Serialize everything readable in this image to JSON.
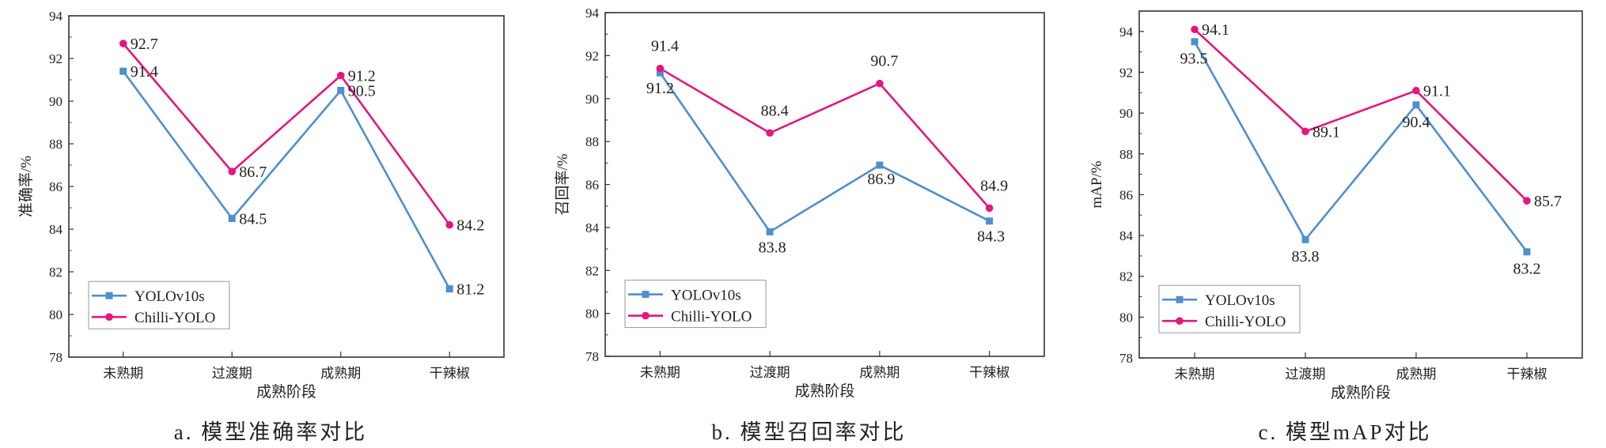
{
  "colors": {
    "YOLOv10s": "#4f8fcc",
    "Chilli-YOLO": "#e3177d",
    "axis": "#333333"
  },
  "chart_data": [
    {
      "type": "line",
      "caption": "a. 模型准确率对比",
      "xlabel": "成熟阶段",
      "ylabel": "准确率/%",
      "categories": [
        "未熟期",
        "过渡期",
        "成熟期",
        "干辣椒"
      ],
      "ylim": [
        78,
        94
      ],
      "yticks": [
        78,
        80,
        82,
        84,
        86,
        88,
        90,
        92,
        94
      ],
      "legend_position": "bottom-left",
      "series": [
        {
          "name": "YOLOv10s",
          "marker": "square",
          "values": [
            91.4,
            84.5,
            90.5,
            81.2
          ],
          "labels": [
            "91.4",
            "84.5",
            "90.5",
            "81.2"
          ]
        },
        {
          "name": "Chilli-YOLO",
          "marker": "circle",
          "values": [
            92.7,
            86.7,
            91.2,
            84.2
          ],
          "labels": [
            "92.7",
            "86.7",
            "91.2",
            "84.2"
          ]
        }
      ]
    },
    {
      "type": "line",
      "caption": "b. 模型召回率对比",
      "xlabel": "成熟阶段",
      "ylabel": "召回率/%",
      "categories": [
        "未熟期",
        "过渡期",
        "成熟期",
        "干辣椒"
      ],
      "ylim": [
        78,
        94
      ],
      "yticks": [
        78,
        80,
        82,
        84,
        86,
        88,
        90,
        92,
        94
      ],
      "legend_position": "bottom-left",
      "series": [
        {
          "name": "YOLOv10s",
          "marker": "square",
          "values": [
            91.2,
            83.8,
            86.9,
            84.3
          ],
          "labels": [
            "91.2",
            "83.8",
            "86.9",
            "84.3"
          ]
        },
        {
          "name": "Chilli-YOLO",
          "marker": "circle",
          "values": [
            91.4,
            88.4,
            90.7,
            84.9
          ],
          "labels": [
            "91.4",
            "88.4",
            "90.7",
            "84.9"
          ]
        }
      ]
    },
    {
      "type": "line",
      "caption": "c. 模型mAP对比",
      "xlabel": "成熟阶段",
      "ylabel": "mAP/%",
      "categories": [
        "未熟期",
        "过渡期",
        "成熟期",
        "干辣椒"
      ],
      "ylim": [
        78,
        95
      ],
      "yticks": [
        78,
        80,
        82,
        84,
        86,
        88,
        90,
        92,
        94
      ],
      "legend_position": "bottom-left",
      "series": [
        {
          "name": "YOLOv10s",
          "marker": "square",
          "values": [
            93.5,
            83.8,
            90.4,
            83.2
          ],
          "labels": [
            "93.5",
            "83.8",
            "90.4",
            "83.2"
          ]
        },
        {
          "name": "Chilli-YOLO",
          "marker": "circle",
          "values": [
            94.1,
            89.1,
            91.1,
            85.7
          ],
          "labels": [
            "94.1",
            "89.1",
            "91.1",
            "85.7"
          ]
        }
      ]
    }
  ]
}
